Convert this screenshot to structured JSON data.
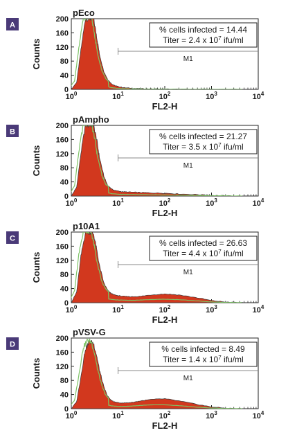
{
  "colors": {
    "fill": "#d2381e",
    "outline": "#3a3a3a",
    "control": "#7dc466",
    "badge": "#4a3a78",
    "gate": "#888888"
  },
  "panels": [
    {
      "letter": "A",
      "title": "pEco",
      "stats_line1": "% cells infected = 14.44",
      "stats_line2": "Titer = 2.4 x 10",
      "stats_exp": "7",
      "stats_unit": " ifu/ml",
      "gate_label": "M1"
    },
    {
      "letter": "B",
      "title": "pAmpho",
      "stats_line1": "% cells infected = 21.27",
      "stats_line2": "Titer = 3.5 x 10",
      "stats_exp": "7",
      "stats_unit": " ifu/ml",
      "gate_label": "M1"
    },
    {
      "letter": "C",
      "title": "p10A1",
      "stats_line1": "% cells infected = 26.63",
      "stats_line2": "Titer = 4.4 x 10",
      "stats_exp": "7",
      "stats_unit": " ifu/ml",
      "gate_label": "M1"
    },
    {
      "letter": "D",
      "title": "pVSV-G",
      "stats_line1": "% cells infected = 8.49",
      "stats_line2": "Titer = 1.4 x 10",
      "stats_exp": "7",
      "stats_unit": " ifu/ml",
      "gate_label": "M1"
    }
  ],
  "chart_data": [
    {
      "type": "area",
      "title": "pEco",
      "xlabel": "FL2-H",
      "ylabel": "Counts",
      "xscale": "log",
      "xlim": [
        1,
        10000
      ],
      "ylim": [
        0,
        200
      ],
      "x_ticks": [
        "10",
        "10",
        "10",
        "10",
        "10"
      ],
      "x_tick_exps": [
        "0",
        "1",
        "2",
        "3",
        "4"
      ],
      "y_ticks": [
        "0",
        "40",
        "80",
        "120",
        "160",
        "200"
      ],
      "gate": {
        "label": "M1",
        "x_start": 10,
        "x_end": 10000
      },
      "series": [
        {
          "x": [
            1,
            1.3,
            1.6,
            2,
            2.5,
            3,
            3.5,
            4,
            5,
            6,
            7,
            8,
            10,
            13,
            20,
            30,
            50,
            100,
            200,
            500,
            1000,
            2000,
            5000
          ],
          "values": [
            0,
            20,
            110,
            200,
            200,
            200,
            150,
            100,
            50,
            28,
            18,
            12,
            8,
            5,
            3,
            2,
            1.5,
            1,
            0.6,
            0.3,
            0.2,
            0.1,
            0
          ]
        }
      ]
    },
    {
      "type": "area",
      "title": "pAmpho",
      "xlabel": "FL2-H",
      "ylabel": "Counts",
      "xscale": "log",
      "xlim": [
        1,
        10000
      ],
      "ylim": [
        0,
        200
      ],
      "x_ticks": [
        "10",
        "10",
        "10",
        "10",
        "10"
      ],
      "x_tick_exps": [
        "0",
        "1",
        "2",
        "3",
        "4"
      ],
      "y_ticks": [
        "0",
        "40",
        "80",
        "120",
        "160",
        "200"
      ],
      "gate": {
        "label": "M1",
        "x_start": 10,
        "x_end": 10000
      },
      "series": [
        {
          "x": [
            1,
            1.3,
            1.6,
            2,
            2.5,
            3,
            3.5,
            4,
            5,
            6,
            7,
            8,
            10,
            13,
            20,
            30,
            50,
            100,
            200,
            500,
            1000,
            2000,
            5000
          ],
          "values": [
            0,
            25,
            120,
            200,
            200,
            200,
            160,
            110,
            55,
            30,
            22,
            17,
            14,
            12,
            11,
            10,
            9,
            8,
            6,
            4,
            2,
            0.8,
            0
          ]
        }
      ]
    },
    {
      "type": "area",
      "title": "p10A1",
      "xlabel": "FL2-H",
      "ylabel": "Counts",
      "xscale": "log",
      "xlim": [
        1,
        10000
      ],
      "ylim": [
        0,
        200
      ],
      "x_ticks": [
        "10",
        "10",
        "10",
        "10",
        "10"
      ],
      "x_tick_exps": [
        "0",
        "1",
        "2",
        "3",
        "4"
      ],
      "y_ticks": [
        "0",
        "40",
        "80",
        "120",
        "160",
        "200"
      ],
      "gate": {
        "label": "M1",
        "x_start": 10,
        "x_end": 10000
      },
      "series": [
        {
          "x": [
            1,
            1.3,
            1.6,
            2,
            2.5,
            3,
            3.5,
            4,
            5,
            6,
            7,
            8,
            10,
            13,
            20,
            30,
            50,
            100,
            200,
            500,
            1000,
            2000,
            5000
          ],
          "values": [
            0,
            30,
            130,
            200,
            200,
            195,
            150,
            105,
            55,
            35,
            27,
            23,
            20,
            18,
            17,
            18,
            22,
            25,
            22,
            14,
            6,
            2,
            0
          ]
        }
      ]
    },
    {
      "type": "area",
      "title": "pVSV-G",
      "xlabel": "FL2-H",
      "ylabel": "Counts",
      "xscale": "log",
      "xlim": [
        1,
        10000
      ],
      "ylim": [
        0,
        200
      ],
      "x_ticks": [
        "10",
        "10",
        "10",
        "10",
        "10"
      ],
      "x_tick_exps": [
        "0",
        "1",
        "2",
        "3",
        "4"
      ],
      "y_ticks": [
        "0",
        "40",
        "80",
        "120",
        "160",
        "200"
      ],
      "gate": {
        "label": "M1",
        "x_start": 10,
        "x_end": 10000
      },
      "series": [
        {
          "x": [
            1,
            1.3,
            1.6,
            2,
            2.5,
            3,
            3.5,
            4,
            5,
            6,
            7,
            8,
            10,
            13,
            20,
            30,
            50,
            100,
            200,
            500,
            1000,
            2000,
            5000
          ],
          "values": [
            0,
            20,
            90,
            170,
            190,
            185,
            150,
            110,
            60,
            35,
            25,
            20,
            17,
            16,
            18,
            22,
            26,
            28,
            22,
            12,
            5,
            1.5,
            0
          ]
        }
      ]
    }
  ]
}
